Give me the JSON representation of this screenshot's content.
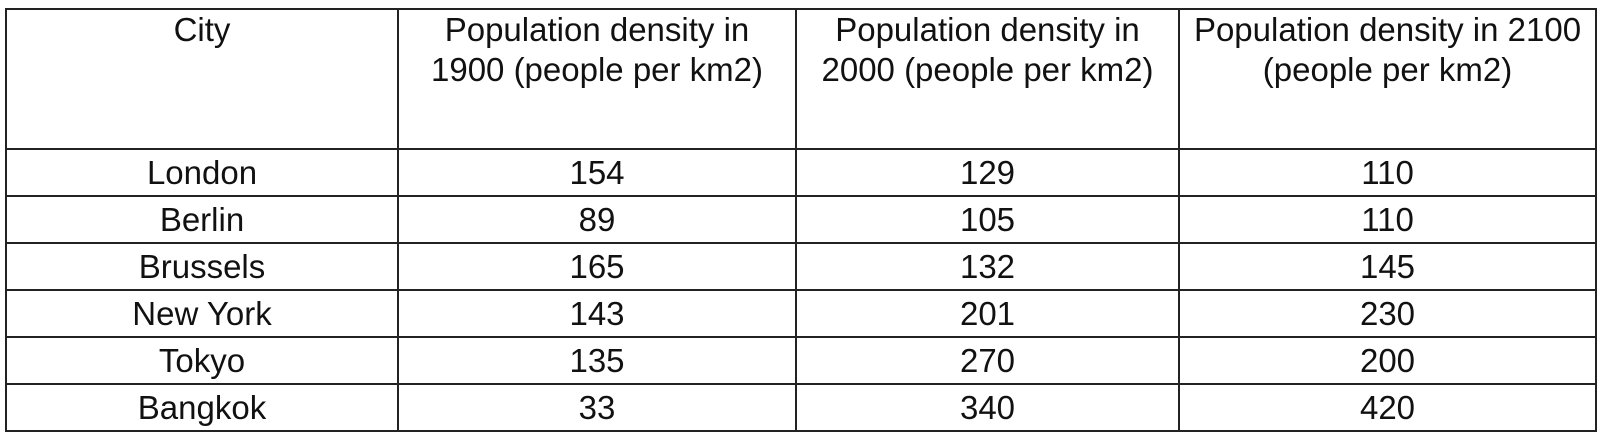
{
  "table": {
    "header": [
      "City",
      "Population density in 1900 (people per km2)",
      "Population density in 2000 (people per km2)",
      "Population density in 2100 (people per km2)"
    ],
    "rows": [
      [
        "London",
        154,
        129,
        110
      ],
      [
        "Berlin",
        89,
        105,
        110
      ],
      [
        "Brussels",
        165,
        132,
        145
      ],
      [
        "New York",
        143,
        201,
        230
      ],
      [
        "Tokyo",
        135,
        270,
        200
      ],
      [
        "Bangkok",
        33,
        340,
        420
      ]
    ]
  }
}
